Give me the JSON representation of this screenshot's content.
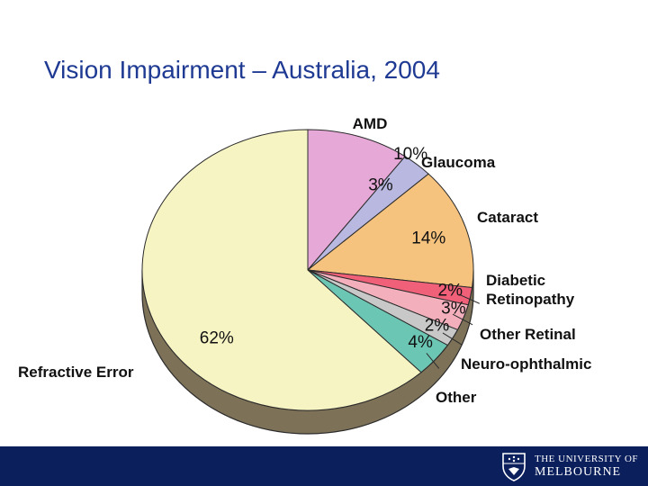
{
  "slide": {
    "title": "Vision Impairment – Australia, 2004"
  },
  "colors": {
    "title": "#1f3a93",
    "footer": "#0b1f5c"
  },
  "chart_data": {
    "type": "pie",
    "title": "Vision Impairment – Australia, 2004",
    "start_angle_deg": -90,
    "direction": "clockwise",
    "slices": [
      {
        "category": "AMD",
        "value": 10,
        "label": "10%",
        "color": "#e6a8d7"
      },
      {
        "category": "Glaucoma",
        "value": 3,
        "label": "3%",
        "color": "#b8b8e0"
      },
      {
        "category": "Cataract",
        "value": 14,
        "label": "14%",
        "color": "#f5c37e"
      },
      {
        "category": "Diabetic Retinopathy",
        "value": 2,
        "label": "2%",
        "color": "#f06078"
      },
      {
        "category": "Other Retinal",
        "value": 3,
        "label": "3%",
        "color": "#f3b0bc"
      },
      {
        "category": "Neuro-ophthalmic",
        "value": 2,
        "label": "2%",
        "color": "#c8c8c8"
      },
      {
        "category": "Other",
        "value": 4,
        "label": "4%",
        "color": "#6cc6b4"
      },
      {
        "category": "Refractive Error",
        "value": 62,
        "label": "62%",
        "color": "#f7f4c4"
      }
    ]
  },
  "footer": {
    "logo_line1": "THE UNIVERSITY OF",
    "logo_line2": "MELBOURNE"
  }
}
